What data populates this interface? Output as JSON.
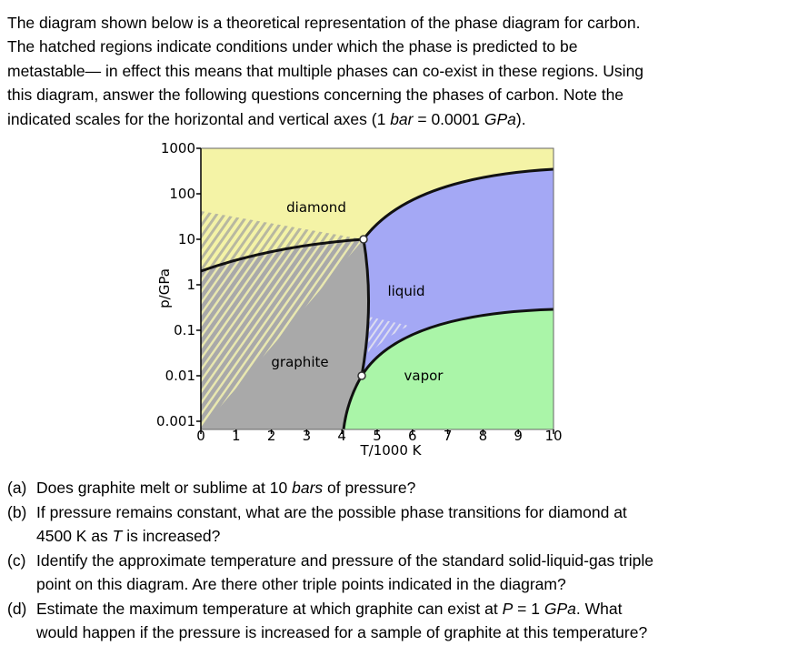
{
  "intro": {
    "lines": [
      [
        "The diagram shown below is a theoretical representation of the phase diagram for carbon."
      ],
      [
        "The hatched regions indicate conditions under which the phase is predicted to be"
      ],
      [
        "metastable— in effect this means that multiple phases can co-exist in these regions. Using"
      ],
      [
        "this diagram, answer the following questions concerning the phases of carbon. Note the"
      ],
      [
        "indicated scales for the horizontal and vertical axes (1 ",
        "bar",
        " = 0.0001 ",
        "GPa",
        ")."
      ]
    ]
  },
  "figure": {
    "y_axis_label": "p/GPa",
    "x_axis_label": "T/1000 K",
    "y_tick_labels": [
      "1000",
      "100",
      "10",
      "1",
      "0.1",
      "0.01",
      "0.001"
    ],
    "x_tick_labels": [
      "0",
      "1",
      "2",
      "3",
      "4",
      "5",
      "6",
      "7",
      "8",
      "9",
      "10"
    ],
    "region_labels": {
      "diamond": "diamond",
      "liquid": "liquid",
      "graphite": "graphite",
      "vapor": "vapor"
    }
  },
  "questions": [
    {
      "label": "(a)",
      "lines": [
        [
          "Does graphite melt or sublime at 10 ",
          "bars",
          " of pressure?"
        ]
      ]
    },
    {
      "label": "(b)",
      "lines": [
        [
          "If pressure remains constant, what are the possible phase transitions for diamond at"
        ],
        [
          "4500 K as ",
          "T",
          " is increased?"
        ]
      ]
    },
    {
      "label": "(c)",
      "lines": [
        [
          "Identify the approximate temperature and pressure of the standard solid-liquid-gas triple"
        ],
        [
          "point on this diagram. Are there other triple points indicated in the diagram?"
        ]
      ]
    },
    {
      "label": "(d)",
      "lines": [
        [
          "Estimate the maximum temperature at which graphite can exist at ",
          "P",
          " = 1 ",
          "GPa",
          ". What"
        ],
        [
          "would happen if the pressure is increased for a sample of graphite at this temperature?"
        ]
      ]
    }
  ]
}
